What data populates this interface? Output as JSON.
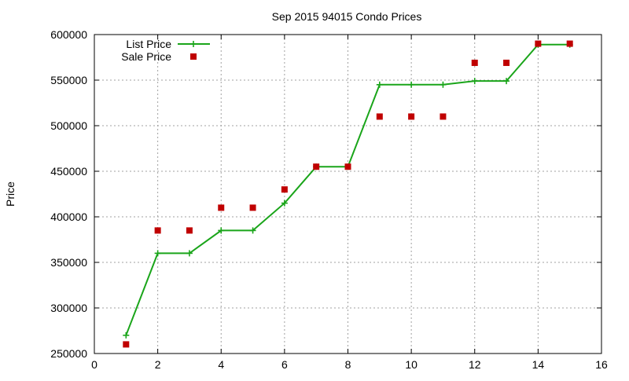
{
  "chart_data": {
    "type": "line",
    "title": "Sep 2015 94015 Condo Prices",
    "xlabel": "",
    "ylabel": "Price",
    "xlim": [
      0,
      16
    ],
    "ylim": [
      250000,
      600000
    ],
    "xticks": [
      0,
      2,
      4,
      6,
      8,
      10,
      12,
      14,
      16
    ],
    "yticks": [
      250000,
      300000,
      350000,
      400000,
      450000,
      500000,
      550000,
      600000
    ],
    "grid": true,
    "legend_position": "top-left",
    "series": [
      {
        "name": "List Price",
        "style": "linespoints",
        "color": "#1aa51a",
        "x": [
          1,
          2,
          3,
          4,
          5,
          6,
          7,
          8,
          9,
          10,
          11,
          12,
          13,
          14,
          15
        ],
        "y": [
          270000,
          360000,
          360000,
          385000,
          385000,
          415000,
          455000,
          455000,
          545000,
          545000,
          545000,
          549000,
          549000,
          589000,
          589000
        ]
      },
      {
        "name": "Sale Price",
        "style": "points",
        "color": "#c00000",
        "x": [
          1,
          2,
          3,
          4,
          5,
          6,
          7,
          8,
          9,
          10,
          11,
          12,
          13,
          14,
          15
        ],
        "y": [
          260000,
          385000,
          385000,
          410000,
          410000,
          430000,
          455000,
          455000,
          510000,
          510000,
          510000,
          569000,
          569000,
          590000,
          590000
        ]
      }
    ]
  }
}
